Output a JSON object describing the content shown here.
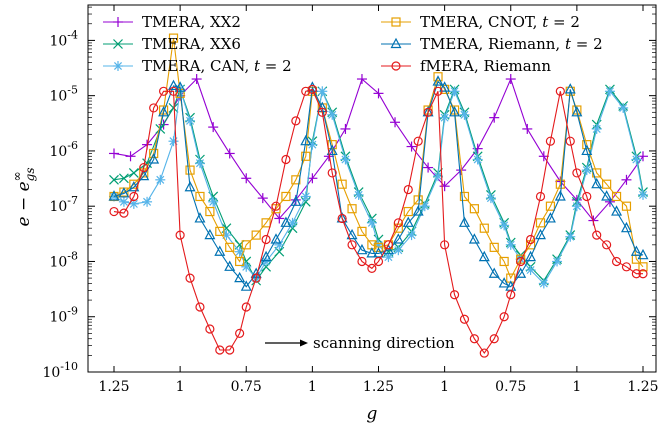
{
  "chart_data": {
    "type": "line",
    "xlabel": "g",
    "ylabel": "e − e_gs^∞",
    "yscale": "log",
    "ylim": [
      1e-10,
      0.001
    ],
    "grid": false,
    "legend_position": "top",
    "x_ticks": [
      {
        "pos": 0,
        "label": "1.25"
      },
      {
        "pos": 10,
        "label": "1"
      },
      {
        "pos": 20,
        "label": "0.75"
      },
      {
        "pos": 30,
        "label": "1"
      },
      {
        "pos": 40,
        "label": "1.25"
      },
      {
        "pos": 50,
        "label": "1"
      },
      {
        "pos": 60,
        "label": "0.75"
      },
      {
        "pos": 70,
        "label": "1"
      },
      {
        "pos": 80,
        "label": "1.25"
      }
    ],
    "y_ticks": [
      {
        "exp": -10,
        "label": "10^-10"
      },
      {
        "exp": -9,
        "label": "10^-9"
      },
      {
        "exp": -8,
        "label": "10^-8"
      },
      {
        "exp": -7,
        "label": "10^-7"
      },
      {
        "exp": -6,
        "label": "10^-6"
      },
      {
        "exp": -5,
        "label": "10^-5"
      },
      {
        "exp": -4,
        "label": "10^-4"
      }
    ],
    "annotation": "scanning direction",
    "series": [
      {
        "name": "TMERA, XX2",
        "color": "#9400d3",
        "marker": "plus",
        "x": [
          0,
          2.5,
          5,
          7.5,
          10,
          12.5,
          15,
          17.5,
          20,
          22.5,
          25,
          27.5,
          30,
          32.5,
          35,
          37.5,
          40,
          42.5,
          45,
          47.5,
          50,
          52.5,
          55,
          57.5,
          60,
          62.5,
          65,
          67.5,
          70,
          72.5,
          75,
          77.5,
          80
        ],
        "y": [
          9e-07,
          8e-07,
          1.3e-06,
          3e-06,
          1e-05,
          2e-05,
          2.7e-06,
          9e-07,
          3.2e-07,
          1.4e-07,
          6e-08,
          1.3e-07,
          3.2e-07,
          8e-07,
          2.5e-06,
          2e-05,
          1.1e-05,
          3.3e-06,
          1.2e-06,
          5e-07,
          2.3e-07,
          4.5e-07,
          1.1e-06,
          4e-06,
          2e-05,
          2.5e-06,
          8e-07,
          2.8e-07,
          1.3e-07,
          5.5e-08,
          1.2e-07,
          3e-07,
          8e-07
        ]
      },
      {
        "name": "TMERA, XX6",
        "color": "#009e73",
        "marker": "cross",
        "x": [
          0,
          1.5,
          3,
          5,
          7,
          9,
          10,
          11.5,
          13,
          15,
          17,
          19,
          20,
          21.5,
          23,
          25,
          27,
          29,
          30,
          31.5,
          33,
          35,
          37,
          39,
          40,
          41.5,
          43,
          45,
          47,
          49,
          50,
          51.5,
          53,
          55,
          57,
          59,
          60,
          61.5,
          63,
          65,
          67,
          69,
          70,
          71.5,
          73,
          75,
          77,
          79,
          80
        ],
        "y": [
          3e-07,
          3.2e-07,
          4e-07,
          6e-07,
          2.5e-06,
          6e-06,
          1.3e-05,
          4e-06,
          7e-07,
          1.5e-07,
          4e-08,
          2e-08,
          1e-08,
          4.5e-09,
          8e-09,
          1.5e-08,
          4e-08,
          1.2e-07,
          1.5e-06,
          1.2e-05,
          5e-06,
          8e-07,
          1.8e-07,
          6e-08,
          2.5e-08,
          1.5e-08,
          1.8e-08,
          3.5e-08,
          1.1e-07,
          4e-07,
          4.5e-06,
          1.3e-05,
          5e-06,
          8e-07,
          1.6e-07,
          5e-08,
          2.2e-08,
          1.3e-08,
          8e-09,
          4.5e-09,
          1.1e-08,
          3e-08,
          1.2e-07,
          5e-07,
          3e-06,
          1.3e-05,
          6.5e-06,
          8e-07,
          1.8e-07
        ]
      },
      {
        "name": "TMERA, CAN, t = 2",
        "color": "#56b4e9",
        "marker": "asterisk",
        "x": [
          0,
          1.5,
          3,
          5,
          7,
          9,
          10,
          11.5,
          13,
          15,
          17,
          19,
          20,
          21.5,
          23,
          25,
          27,
          29,
          30,
          31.5,
          33,
          35,
          37,
          39,
          40,
          41.5,
          43,
          45,
          47,
          49,
          50,
          51.5,
          53,
          55,
          57,
          59,
          60,
          61.5,
          63,
          65,
          67,
          69,
          70,
          71.5,
          73,
          75,
          77,
          79,
          80
        ],
        "y": [
          1.5e-07,
          1.2e-07,
          1.1e-07,
          1.2e-07,
          3e-07,
          1.5e-06,
          1.3e-05,
          3.5e-06,
          6e-07,
          1.2e-07,
          3e-08,
          1.5e-08,
          8e-09,
          5e-09,
          1e-08,
          2e-08,
          5e-08,
          1.5e-07,
          1.3e-06,
          1.2e-05,
          4.5e-06,
          7e-07,
          1.6e-07,
          5e-08,
          2e-08,
          1.2e-08,
          1.6e-08,
          3e-08,
          1e-07,
          3.5e-07,
          4e-06,
          1.2e-05,
          4.5e-06,
          7e-07,
          1.4e-07,
          4.5e-08,
          2e-08,
          1.1e-08,
          7e-09,
          4e-09,
          1e-08,
          2.8e-08,
          1e-07,
          4.5e-07,
          2.5e-06,
          1.2e-05,
          6e-06,
          7e-07,
          1.6e-07
        ]
      },
      {
        "name": "TMERA, CNOT, t = 2",
        "color": "#e69f00",
        "marker": "square",
        "x": [
          0,
          1.5,
          3,
          4.5,
          6,
          7.5,
          9,
          10,
          11.5,
          13,
          14.5,
          16,
          17.5,
          19,
          20,
          21.5,
          23,
          24.5,
          26,
          27.5,
          29,
          30,
          31.5,
          33,
          34.5,
          36,
          37.5,
          39,
          40,
          41.5,
          43,
          44.5,
          46,
          47.5,
          49,
          50,
          51.5,
          53,
          54.5,
          56,
          57.5,
          59,
          60,
          61.5,
          63,
          64.5,
          66,
          67.5,
          69,
          70,
          71.5,
          73,
          74.5,
          76,
          77.5,
          79,
          80
        ],
        "y": [
          1.5e-07,
          1.8e-07,
          2.5e-07,
          4e-07,
          9e-07,
          5.5e-06,
          0.00011,
          1.1e-05,
          4.5e-07,
          1.5e-07,
          8e-08,
          3.5e-08,
          1.8e-08,
          1e-08,
          2e-08,
          3e-08,
          5e-08,
          9e-08,
          1.5e-07,
          3e-07,
          8e-07,
          1.2e-05,
          6e-06,
          1.3e-06,
          2.5e-07,
          9e-08,
          3.5e-08,
          2e-08,
          1.8e-08,
          2e-08,
          4e-08,
          8e-08,
          1.3e-07,
          5.5e-06,
          2.2e-05,
          1.3e-05,
          5.5e-06,
          1.5e-07,
          9e-08,
          4e-08,
          1.8e-08,
          1e-08,
          5e-09,
          1.1e-08,
          2e-08,
          5e-08,
          1e-07,
          2.5e-07,
          1.2e-05,
          5.5e-06,
          1.3e-06,
          4e-07,
          2.5e-07,
          1.5e-07,
          1e-07,
          1.1e-08,
          8e-09
        ]
      },
      {
        "name": "TMERA, Riemann, t = 2",
        "color": "#0072b2",
        "marker": "triangle",
        "x": [
          0,
          1.5,
          3,
          4.5,
          6,
          7.5,
          9,
          10,
          11.5,
          13,
          14.5,
          16,
          17.5,
          19,
          20,
          21.5,
          23,
          24.5,
          26,
          27.5,
          29,
          30,
          31.5,
          33,
          34.5,
          36,
          37.5,
          39,
          40,
          41.5,
          43,
          44.5,
          46,
          47.5,
          49,
          50,
          51.5,
          53,
          54.5,
          56,
          57.5,
          59,
          60,
          61.5,
          63,
          64.5,
          66,
          67.5,
          69,
          70,
          71.5,
          73,
          74.5,
          76,
          77.5,
          79,
          80
        ],
        "y": [
          1.5e-07,
          1.7e-07,
          2.2e-07,
          3.5e-07,
          7e-07,
          5e-06,
          1.5e-05,
          1.4e-05,
          2.2e-07,
          6e-08,
          3e-08,
          1.5e-08,
          8e-09,
          5e-09,
          3.5e-09,
          6e-09,
          1.2e-08,
          2.5e-08,
          5e-08,
          1.2e-07,
          1.5e-06,
          1.4e-05,
          6e-06,
          1e-06,
          6e-08,
          3e-08,
          1.6e-08,
          1.4e-08,
          1.4e-08,
          1.6e-08,
          2.5e-08,
          5e-08,
          8e-08,
          5e-06,
          1.8e-05,
          1.4e-05,
          5e-06,
          5e-08,
          2.5e-08,
          1.2e-08,
          6e-09,
          4e-09,
          3.5e-09,
          6e-09,
          1.2e-08,
          3e-08,
          6e-08,
          1.5e-07,
          1.3e-05,
          5e-06,
          1e-06,
          2.5e-07,
          1.5e-07,
          8e-08,
          4e-08,
          1.5e-08,
          1.3e-08
        ]
      },
      {
        "name": "fMERA, Riemann",
        "color": "#e41a1c",
        "marker": "circle",
        "x": [
          0,
          1.5,
          3,
          4.5,
          6,
          7.5,
          9,
          10,
          11.5,
          13,
          14.5,
          16,
          17.5,
          19,
          20,
          21.5,
          23,
          24.5,
          26,
          27.5,
          29,
          30,
          31.5,
          33,
          34.5,
          36,
          37.5,
          39,
          40,
          41.5,
          43,
          44.5,
          46,
          47.5,
          49,
          50,
          51.5,
          53,
          54.5,
          56,
          57.5,
          59,
          60,
          61.5,
          63,
          64.5,
          66,
          67.5,
          69,
          70,
          71.5,
          73,
          74.5,
          76,
          77.5,
          79,
          80
        ],
        "y": [
          8e-08,
          7.5e-08,
          1.5e-07,
          5e-07,
          6e-06,
          1.2e-05,
          1.2e-05,
          3e-08,
          5e-09,
          1.5e-09,
          6e-10,
          2.5e-10,
          2.5e-10,
          5e-10,
          1.5e-09,
          5e-09,
          2.5e-08,
          1e-07,
          7e-07,
          3.5e-06,
          1.2e-05,
          1.3e-05,
          5e-06,
          4e-07,
          6e-08,
          2e-08,
          1e-08,
          7.5e-09,
          1e-08,
          2e-08,
          5e-08,
          2e-07,
          1.5e-06,
          5e-06,
          1.2e-05,
          2e-08,
          2.5e-09,
          9e-10,
          4e-10,
          2.2e-10,
          4e-10,
          1e-09,
          2.5e-09,
          1e-08,
          2.5e-08,
          1.5e-07,
          1.5e-06,
          1.2e-05,
          1.5e-06,
          4e-07,
          1.5e-07,
          3e-08,
          2e-08,
          1e-08,
          8e-09,
          6e-09,
          6e-09
        ]
      }
    ]
  }
}
